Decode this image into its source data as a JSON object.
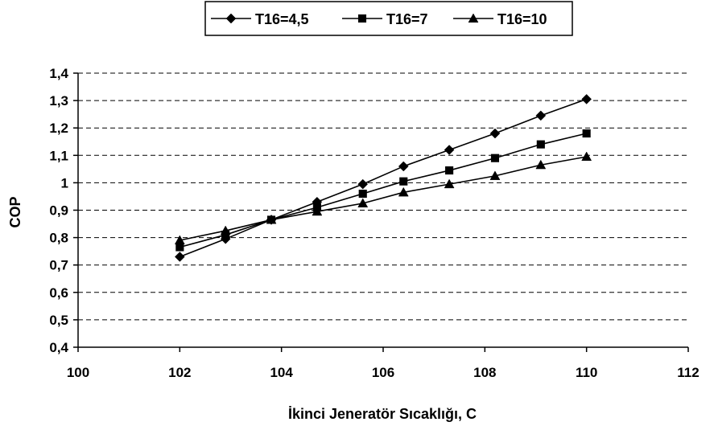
{
  "chart_data": {
    "type": "line",
    "title": "",
    "xlabel": "İkinci Jeneratör Sıcaklığı,  C",
    "ylabel": "COP",
    "xlim": [
      100,
      112
    ],
    "ylim": [
      0.4,
      1.4
    ],
    "x_ticks": [
      "100",
      "102",
      "104",
      "106",
      "108",
      "110",
      "112"
    ],
    "y_ticks": [
      "0,4",
      "0,5",
      "0,6",
      "0,7",
      "0,8",
      "0,9",
      "1",
      "1,1",
      "1,2",
      "1,3",
      "1,4"
    ],
    "grid": "horizontal dashed",
    "legend_position": "top",
    "x": [
      102,
      102.9,
      103.8,
      104.7,
      105.6,
      106.4,
      107.3,
      108.2,
      109.1,
      110
    ],
    "series": [
      {
        "name": "T16=4,5",
        "marker": "diamond",
        "values": [
          0.73,
          0.795,
          0.865,
          0.93,
          0.995,
          1.06,
          1.12,
          1.18,
          1.245,
          1.305
        ]
      },
      {
        "name": "T16=7",
        "marker": "square",
        "values": [
          0.765,
          0.81,
          0.865,
          0.91,
          0.96,
          1.005,
          1.045,
          1.09,
          1.14,
          1.18
        ]
      },
      {
        "name": "T16=10",
        "marker": "triangle",
        "values": [
          0.79,
          0.825,
          0.865,
          0.895,
          0.925,
          0.965,
          0.995,
          1.025,
          1.065,
          1.095
        ]
      }
    ]
  }
}
